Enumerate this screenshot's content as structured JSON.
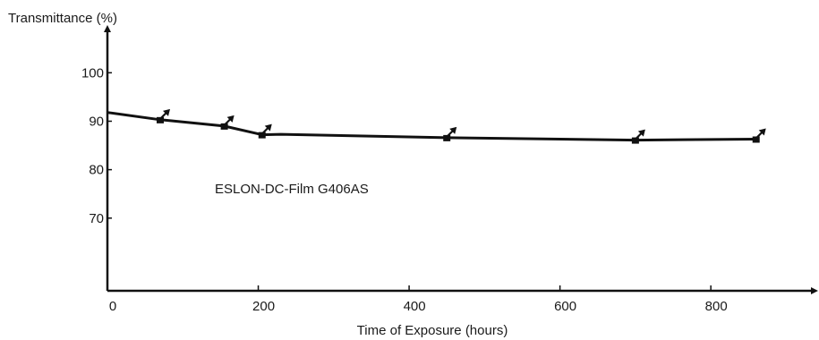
{
  "chart_data": {
    "type": "line",
    "ylabel": "Transmittance (%)",
    "xlabel": "Time of Exposure (hours)",
    "annotation": "ESLON-DC-Film G406AS",
    "xlim": [
      0,
      890
    ],
    "ylim": [
      55,
      108
    ],
    "x_ticks": [
      0,
      200,
      400,
      600,
      800
    ],
    "x_tick_labels": [
      "0",
      "200",
      "400",
      "600",
      "800"
    ],
    "y_ticks": [
      70,
      80,
      90,
      100
    ],
    "y_tick_labels": [
      "70",
      "80",
      "90",
      "100"
    ],
    "grid": false,
    "series": [
      {
        "x": [
          0,
          70,
          155,
          205,
          230,
          450,
          700,
          860
        ],
        "y": [
          91.8,
          90.3,
          89.0,
          87.2,
          87.3,
          86.6,
          86.1,
          86.3
        ]
      }
    ],
    "markers_x": [
      70,
      155,
      205,
      450,
      700,
      860
    ]
  }
}
